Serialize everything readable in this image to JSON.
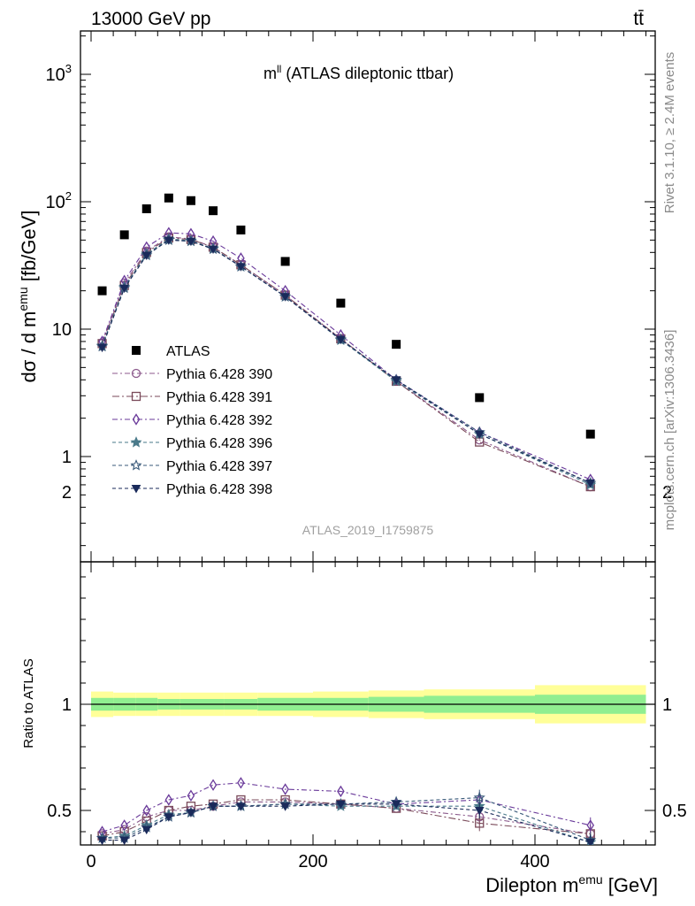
{
  "header": {
    "left": "13000 GeV pp",
    "right": "tt̄"
  },
  "main_plot": {
    "title": "m",
    "title_sup": "ll",
    "title_rest": " (ATLAS dileptonic ttbar)",
    "ylabel": "dσ / d m",
    "ylabel_sup": "emu",
    "ylabel_unit": " [fb/GeV]",
    "yticks": [
      {
        "label": "1",
        "value": 1
      },
      {
        "label": "10",
        "value": 10
      },
      {
        "label": "10",
        "sup": "2",
        "value": 100
      },
      {
        "label": "10",
        "sup": "3",
        "value": 1000
      }
    ],
    "watermark": "ATLAS_2019_I1759875"
  },
  "ratio_plot": {
    "ylabel": "Ratio to ATLAS",
    "yticks": [
      "0.5",
      "1",
      "2"
    ],
    "xticks": [
      "0",
      "200",
      "400"
    ],
    "xlabel": "Dilepton m",
    "xlabel_sup": "emu",
    "xlabel_unit": " [GeV]"
  },
  "side_text": {
    "rivet": "Rivet 3.1.10, ≥ 2.4M events",
    "mcplots": "mcplots.cern.ch [arXiv:1306.3436]"
  },
  "colors": {
    "data": "#000000",
    "band_inner": "#90ee90",
    "band_outer": "#ffff99",
    "s390": "#8c5a8c",
    "s391": "#7a4a5a",
    "s392": "#6a3a9a",
    "s396": "#4a7a8a",
    "s397": "#3a5a7a",
    "s398": "#1a2a5a"
  },
  "chart_data": {
    "type": "scatter",
    "xlabel": "Dilepton m^emu [GeV]",
    "ylabel": "dσ / d m^emu [fb/GeV]",
    "xlim": [
      -10,
      500
    ],
    "ylim": [
      0.15,
      2200
    ],
    "yscale": "log",
    "ratio_ylim": [
      0.34,
      2.3
    ],
    "x": [
      10,
      30,
      50,
      70,
      90,
      110,
      135,
      175,
      225,
      275,
      350,
      450
    ],
    "bin_edges": [
      0,
      20,
      40,
      60,
      80,
      100,
      120,
      150,
      200,
      250,
      300,
      400,
      500
    ],
    "data": {
      "name": "ATLAS",
      "values": [
        20,
        55,
        88,
        107,
        102,
        85,
        60,
        34,
        16,
        7.6,
        2.9,
        1.5
      ],
      "band_inner_halfwidth": [
        0.03,
        0.03,
        0.03,
        0.025,
        0.025,
        0.025,
        0.025,
        0.03,
        0.03,
        0.035,
        0.04,
        0.045
      ],
      "band_outer_halfwidth": [
        0.06,
        0.055,
        0.055,
        0.055,
        0.055,
        0.055,
        0.055,
        0.055,
        0.06,
        0.065,
        0.07,
        0.09
      ]
    },
    "series": [
      {
        "name": "Pythia 6.428 390",
        "marker": "circle-open",
        "dash": "6,3,2,3",
        "values": [
          7.8,
          23,
          41,
          53,
          51,
          44,
          32,
          18.5,
          8.4,
          3.9,
          1.35,
          0.58
        ],
        "ratio": [
          0.39,
          0.41,
          0.47,
          0.5,
          0.5,
          0.52,
          0.54,
          0.54,
          0.53,
          0.51,
          0.47,
          0.39
        ]
      },
      {
        "name": "Pythia 6.428 391",
        "marker": "square-open",
        "dash": "8,3,2,3",
        "values": [
          7.7,
          22,
          40,
          52,
          50.5,
          44,
          32,
          18.5,
          8.4,
          3.9,
          1.3,
          0.58
        ],
        "ratio": [
          0.38,
          0.4,
          0.45,
          0.5,
          0.52,
          0.53,
          0.55,
          0.55,
          0.53,
          0.51,
          0.44,
          0.39
        ]
      },
      {
        "name": "Pythia 6.428 392",
        "marker": "diamond-open",
        "dash": "6,3,2,3",
        "values": [
          8.0,
          24,
          44,
          57,
          56,
          49,
          36,
          20,
          9.0,
          4.0,
          1.55,
          0.66
        ],
        "ratio": [
          0.4,
          0.43,
          0.5,
          0.55,
          0.57,
          0.62,
          0.63,
          0.6,
          0.59,
          0.53,
          0.55,
          0.43
        ]
      },
      {
        "name": "Pythia 6.428 396",
        "marker": "star-filled",
        "dash": "4,3",
        "values": [
          7.4,
          21.5,
          39,
          51,
          49.5,
          43,
          31,
          18,
          8.2,
          3.9,
          1.5,
          0.6
        ],
        "ratio": [
          0.37,
          0.38,
          0.43,
          0.48,
          0.49,
          0.52,
          0.52,
          0.53,
          0.52,
          0.52,
          0.52,
          0.35
        ]
      },
      {
        "name": "Pythia 6.428 397",
        "marker": "star-open",
        "dash": "4,3",
        "values": [
          7.3,
          21,
          38,
          50,
          49,
          42.5,
          31,
          18,
          8.3,
          4.0,
          1.55,
          0.62
        ],
        "ratio": [
          0.37,
          0.37,
          0.42,
          0.47,
          0.49,
          0.52,
          0.52,
          0.53,
          0.53,
          0.54,
          0.56,
          0.36
        ]
      },
      {
        "name": "Pythia 6.428 398",
        "marker": "triangle-down",
        "dash": "4,3",
        "values": [
          7.2,
          21,
          38,
          50,
          49,
          42.5,
          31,
          18,
          8.3,
          4.0,
          1.5,
          0.62
        ],
        "ratio": [
          0.36,
          0.36,
          0.41,
          0.47,
          0.49,
          0.52,
          0.52,
          0.52,
          0.53,
          0.53,
          0.5,
          0.35
        ]
      }
    ]
  }
}
